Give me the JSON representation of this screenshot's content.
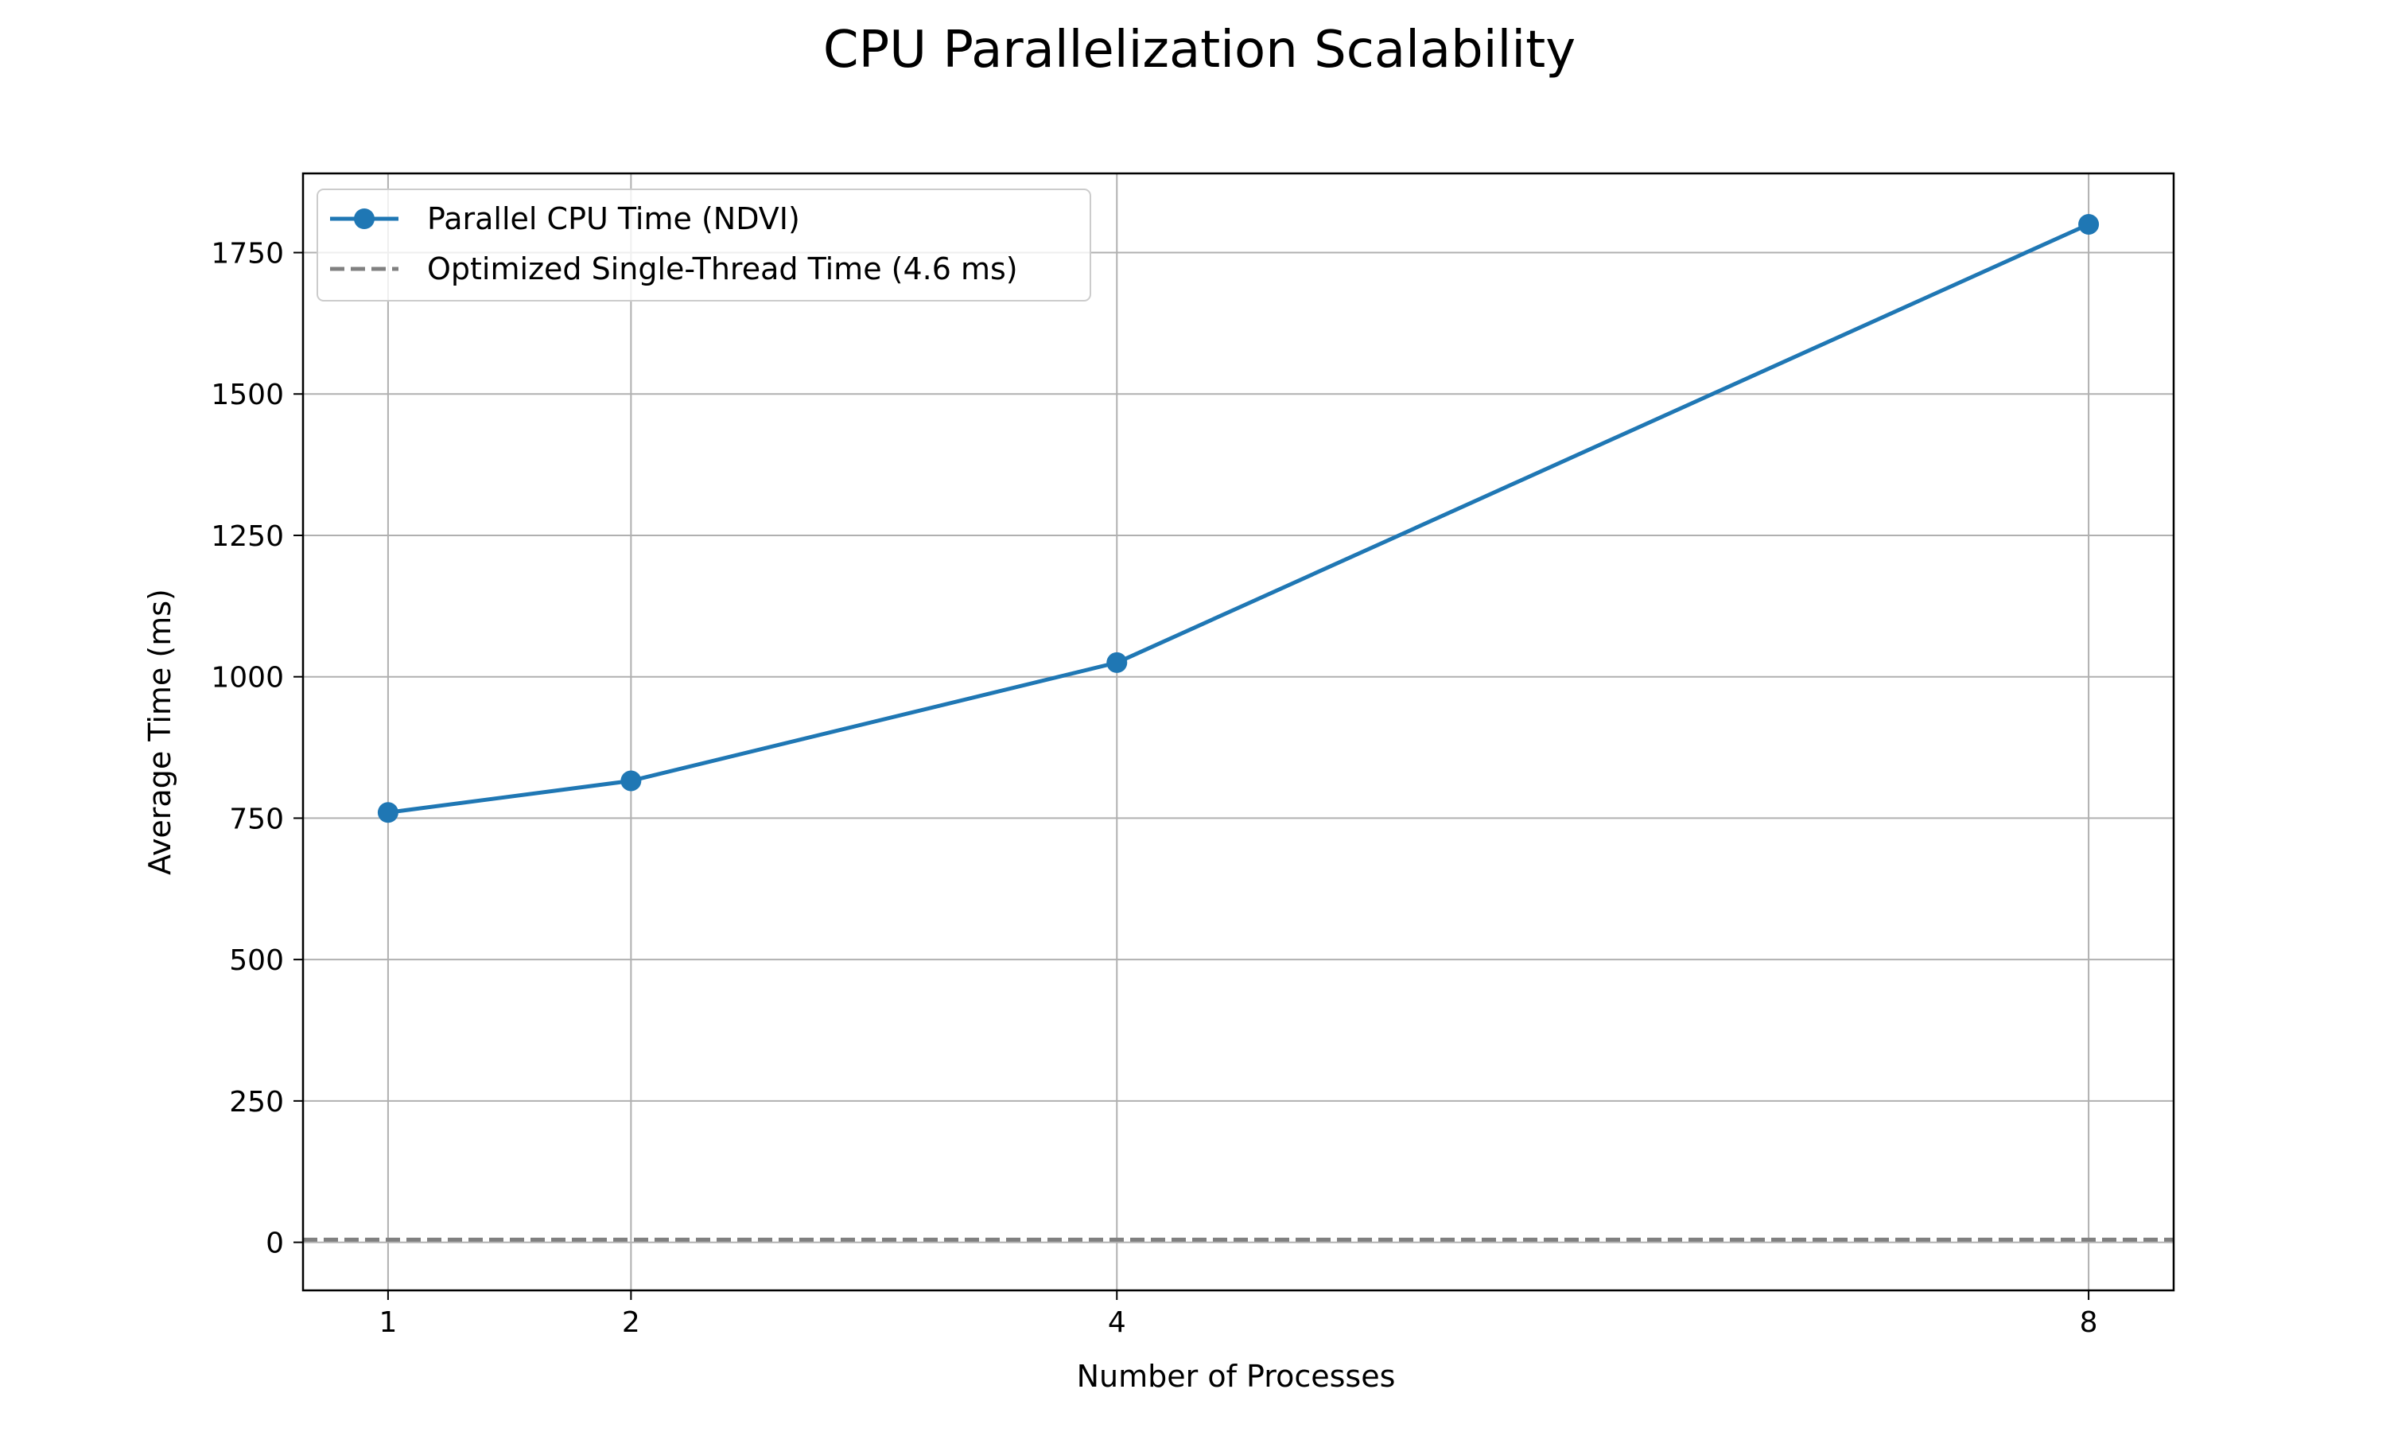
{
  "chart_data": {
    "type": "line",
    "title": "CPU Parallelization Scalability",
    "xlabel": "Number of Processes",
    "ylabel": "Average Time (ms)",
    "x": [
      1,
      2,
      4,
      8
    ],
    "xticks": [
      1,
      2,
      4,
      8
    ],
    "xlim": [
      0.65,
      8.35
    ],
    "yticks": [
      0,
      250,
      500,
      750,
      1000,
      1250,
      1500,
      1750
    ],
    "ylim": [
      -85,
      1890
    ],
    "grid": true,
    "legend_position": "top-left",
    "series": [
      {
        "name": "Parallel CPU Time (NDVI)",
        "values": [
          760,
          816,
          1025,
          1800
        ],
        "color": "#1f77b4",
        "style": "solid",
        "marker": "circle"
      }
    ],
    "reference_lines": [
      {
        "name": "Optimized Single-Thread Time (4.6 ms)",
        "y": 4.6,
        "color": "#808080",
        "style": "dashed"
      }
    ]
  }
}
